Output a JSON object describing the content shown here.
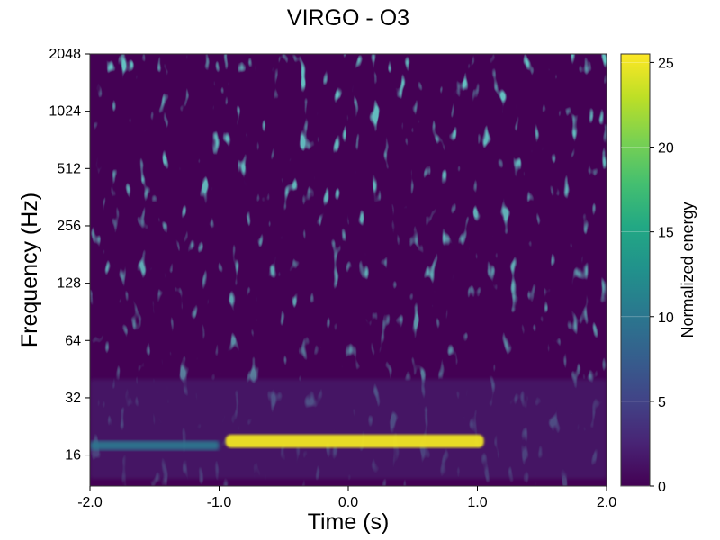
{
  "chart_data": {
    "type": "heatmap",
    "title": "VIRGO - O3",
    "xlabel": "Time (s)",
    "ylabel": "Frequency (Hz)",
    "xlim": [
      -2.0,
      2.0
    ],
    "ylim": [
      11,
      2048
    ],
    "yscale": "log2",
    "x_ticks": [
      -2.0,
      -1.0,
      0.0,
      1.0,
      2.0
    ],
    "x_tick_labels": [
      "-2.0",
      "-1.0",
      "0.0",
      "1.0",
      "2.0"
    ],
    "y_ticks": [
      16,
      32,
      64,
      128,
      256,
      512,
      1024,
      2048
    ],
    "y_tick_labels": [
      "16",
      "32",
      "64",
      "128",
      "256",
      "512",
      "1024",
      "2048"
    ],
    "colormap": "viridis",
    "colorbar": {
      "label": "Normalized energy",
      "range": [
        0,
        25.5
      ],
      "ticks": [
        0,
        5,
        10,
        15,
        20,
        25
      ],
      "tick_labels": [
        "0",
        "5",
        "10",
        "15",
        "20",
        "25"
      ]
    },
    "features": [
      {
        "description": "bright yellow band",
        "t_start": -0.95,
        "t_end": 1.05,
        "f_low": 17.5,
        "f_high": 20.5,
        "energy": 25
      },
      {
        "description": "cyan band",
        "t_start": -2.0,
        "t_end": -1.0,
        "f_low": 17,
        "f_high": 19,
        "energy": 10
      },
      {
        "description": "faint low-frequency lines",
        "t_start": -2.0,
        "t_end": 2.0,
        "f_low": 12,
        "f_high": 40,
        "energy": 3
      },
      {
        "description": "background noise",
        "t_start": -2.0,
        "t_end": 2.0,
        "f_low": 11,
        "f_high": 2048,
        "energy": 1
      }
    ]
  }
}
